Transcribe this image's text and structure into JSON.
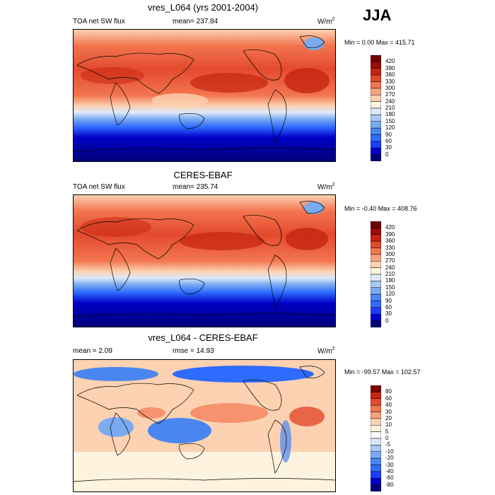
{
  "season": "JJA",
  "panels": [
    {
      "title": "vres_L064 (yrs 2001-2004)",
      "left": "TOA net SW flux",
      "stat": "mean= 237.84",
      "units": "W/m",
      "units_sup": "2",
      "minmax": "Min =   0.00 Max = 415.71",
      "colorbar_ticks": [
        "420",
        "390",
        "360",
        "330",
        "300",
        "270",
        "240",
        "210",
        "180",
        "150",
        "120",
        "90",
        "60",
        "30",
        "0"
      ]
    },
    {
      "title": "CERES-EBAF",
      "left": "TOA net SW flux",
      "stat": "mean= 235.74",
      "units": "W/m",
      "units_sup": "2",
      "minmax": "Min =  -0.40 Max = 408.76",
      "colorbar_ticks": [
        "420",
        "390",
        "360",
        "330",
        "300",
        "270",
        "240",
        "210",
        "180",
        "150",
        "120",
        "90",
        "60",
        "30",
        "0"
      ]
    },
    {
      "title": "vres_L064 - CERES-EBAF",
      "left": "mean =   2.09",
      "stat": "rmse =  14.93",
      "units": "W/m",
      "units_sup": "2",
      "minmax": "Min = -99.57 Max = 102.57",
      "colorbar_ticks": [
        "80",
        "60",
        "40",
        "30",
        "20",
        "10",
        "5",
        "0",
        "-5",
        "-10",
        "-20",
        "-30",
        "-40",
        "-60",
        "-80"
      ]
    }
  ],
  "chart_data": [
    {
      "type": "heatmap",
      "title": "vres_L064 (yrs 2001-2004)",
      "variable": "TOA net SW flux",
      "units": "W/m2",
      "mean": 237.84,
      "min": 0.0,
      "max": 415.71,
      "levels": [
        0,
        30,
        60,
        90,
        120,
        150,
        180,
        210,
        240,
        270,
        300,
        330,
        360,
        390,
        420
      ]
    },
    {
      "type": "heatmap",
      "title": "CERES-EBAF",
      "variable": "TOA net SW flux",
      "units": "W/m2",
      "mean": 235.74,
      "min": -0.4,
      "max": 408.76,
      "levels": [
        0,
        30,
        60,
        90,
        120,
        150,
        180,
        210,
        240,
        270,
        300,
        330,
        360,
        390,
        420
      ]
    },
    {
      "type": "heatmap",
      "title": "vres_L064 - CERES-EBAF",
      "units": "W/m2",
      "mean": 2.09,
      "rmse": 14.93,
      "min": -99.57,
      "max": 102.57,
      "levels": [
        -80,
        -60,
        -40,
        -30,
        -20,
        -10,
        -5,
        0,
        5,
        10,
        20,
        30,
        40,
        60,
        80
      ]
    }
  ],
  "colors": {
    "abs_scale": [
      "#00007a",
      "#0000c8",
      "#1e3cff",
      "#2f6bff",
      "#4a86f0",
      "#7aaaf0",
      "#a9c8f5",
      "#dbe8fb",
      "#fef3de",
      "#fcd2b2",
      "#f9a27e",
      "#f37650",
      "#e34a2d",
      "#c62410",
      "#9a0d06",
      "#6e0000"
    ],
    "diff_scale": [
      "#00007a",
      "#0000c8",
      "#1e3cff",
      "#2f6bff",
      "#4a86f0",
      "#7aaaf0",
      "#a9c8f5",
      "#dbe8fb",
      "#ffffff",
      "#fef3de",
      "#fcd2b2",
      "#f9a27e",
      "#f37650",
      "#e34a2d",
      "#c62410",
      "#7a0000"
    ]
  }
}
